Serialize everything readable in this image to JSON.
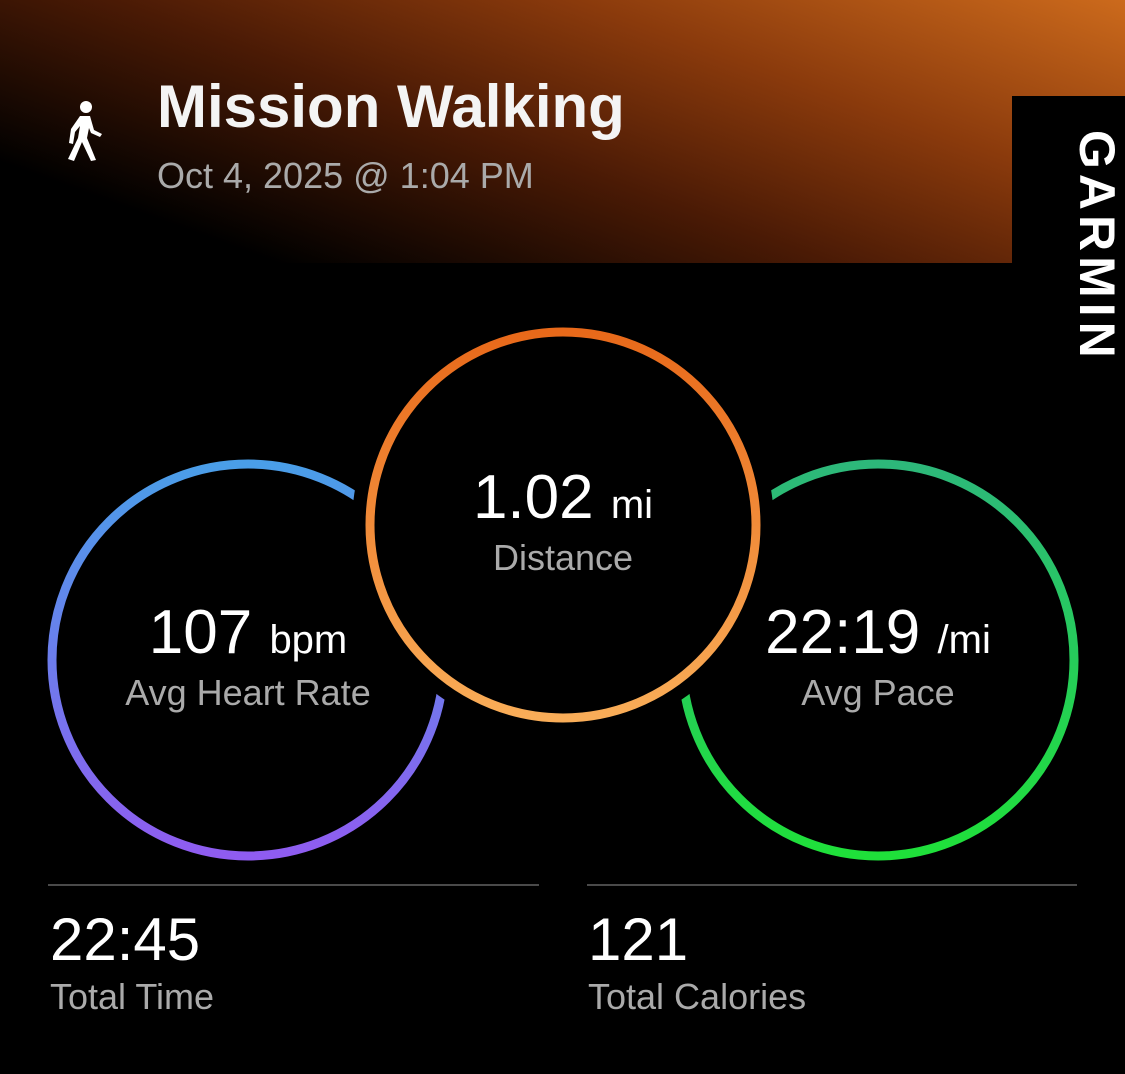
{
  "header": {
    "activity_icon": "walking-person-icon",
    "title": "Mission Walking",
    "datetime": "Oct 4, 2025 @ 1:04 PM",
    "brand": "GARMIN"
  },
  "metrics": {
    "heart_rate": {
      "value": "107",
      "unit": "bpm",
      "label": "Avg Heart Rate",
      "colors": [
        "#4a9ee8",
        "#8f5cf0"
      ]
    },
    "distance": {
      "value": "1.02",
      "unit": "mi",
      "label": "Distance",
      "colors": [
        "#e8691a",
        "#f9ad58"
      ]
    },
    "pace": {
      "value": "22:19",
      "unit": "/mi",
      "label": "Avg Pace",
      "colors": [
        "#2db87a",
        "#1fe03a"
      ]
    }
  },
  "stats": {
    "total_time": {
      "value": "22:45",
      "label": "Total Time"
    },
    "total_calories": {
      "value": "121",
      "label": "Total Calories"
    }
  }
}
